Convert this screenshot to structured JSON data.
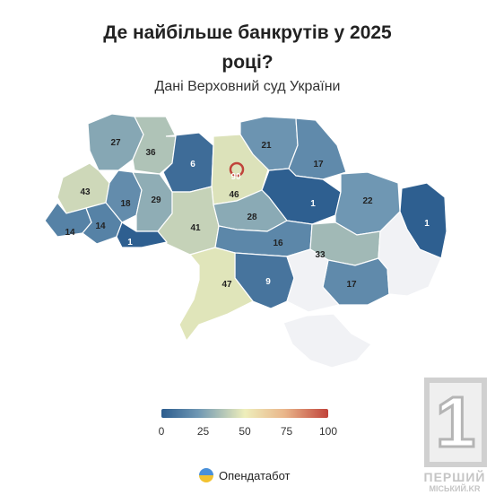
{
  "title": "Де найбільше банкрутів у 2025 році?",
  "subtitle": "Дані Верховний суд України",
  "regions": [
    {
      "name": "Volyn",
      "value": 27
    },
    {
      "name": "Rivne",
      "value": 36
    },
    {
      "name": "Zhytomyr",
      "value": 6
    },
    {
      "name": "Kyiv City",
      "value": 90
    },
    {
      "name": "Kyiv Oblast",
      "value": 46
    },
    {
      "name": "Chernihiv",
      "value": 21
    },
    {
      "name": "Sumy",
      "value": 17
    },
    {
      "name": "Poltava",
      "value": 1
    },
    {
      "name": "Kharkiv",
      "value": 22
    },
    {
      "name": "Luhansk",
      "value": 1
    },
    {
      "name": "Lviv",
      "value": 43
    },
    {
      "name": "Ternopil",
      "value": 18
    },
    {
      "name": "Khmelnytskyi",
      "value": 29
    },
    {
      "name": "Vinnytsia",
      "value": 41
    },
    {
      "name": "Cherkasy",
      "value": 28
    },
    {
      "name": "Zakarpattia",
      "value": 14
    },
    {
      "name": "Ivano-Frankivsk",
      "value": 14
    },
    {
      "name": "Chernivtsi",
      "value": 1
    },
    {
      "name": "Kirovohrad",
      "value": 16
    },
    {
      "name": "Dnipropetrovsk",
      "value": 33
    },
    {
      "name": "Mykolaiv",
      "value": 9
    },
    {
      "name": "Odesa",
      "value": 47
    },
    {
      "name": "Zaporizhzhia",
      "value": 17
    },
    {
      "name": "Donetsk",
      "value": null
    },
    {
      "name": "Kherson",
      "value": null
    },
    {
      "name": "Crimea",
      "value": null
    }
  ],
  "legend": {
    "ticks": [
      "0",
      "25",
      "50",
      "75",
      "100"
    ],
    "colors": [
      "#2b5c8e",
      "#6f97b3",
      "#eeeebb",
      "#e9b58a",
      "#c0433a"
    ]
  },
  "brand": "Опендатабот",
  "watermark": {
    "digit": "1",
    "line1": "ПЕРШИЙ",
    "line2": "МІСЬКИЙ.KR"
  }
}
